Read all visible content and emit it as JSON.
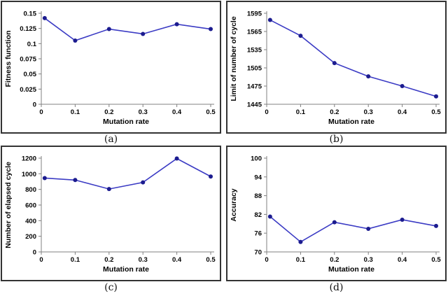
{
  "style": {
    "axis_color": "#808080",
    "line_color": "#3b3bc4",
    "marker_color": "#1c1c8f",
    "panel_border_color": "#333333",
    "background": "#ffffff"
  },
  "chart_data": [
    {
      "type": "line",
      "caption": "(a)",
      "xlabel": "Mutation rate",
      "ylabel": "Fitness function",
      "xlim": [
        0,
        0.5
      ],
      "ylim": [
        0,
        0.15
      ],
      "xticks": [
        0,
        0.1,
        0.2,
        0.3,
        0.4,
        0.5
      ],
      "xtick_labels": [
        "0",
        "0.1",
        "0.2",
        "0.3",
        "0.4",
        "0.5"
      ],
      "yticks": [
        0,
        0.025,
        0.05,
        0.075,
        0.1,
        0.125,
        0.15
      ],
      "ytick_labels": [
        "0",
        "0.025",
        "0.05",
        "0.075",
        "0.1",
        "0.125",
        "0.15"
      ],
      "x": [
        0.01,
        0.1,
        0.2,
        0.3,
        0.4,
        0.5
      ],
      "values": [
        0.142,
        0.105,
        0.124,
        0.116,
        0.132,
        0.124
      ],
      "grid": false,
      "legend": false
    },
    {
      "type": "line",
      "caption": "(b)",
      "xlabel": "Mutation rate",
      "ylabel": "Limit of number of cycle",
      "xlim": [
        0,
        0.5
      ],
      "ylim": [
        1445,
        1595
      ],
      "xticks": [
        0,
        0.1,
        0.2,
        0.3,
        0.4,
        0.5
      ],
      "xtick_labels": [
        "0",
        "0.1",
        "0.2",
        "0.3",
        "0.4",
        "0.5"
      ],
      "yticks": [
        1445,
        1475,
        1505,
        1535,
        1565,
        1595
      ],
      "ytick_labels": [
        "1445",
        "1475",
        "1505",
        "1535",
        "1565",
        "1595"
      ],
      "x": [
        0.01,
        0.1,
        0.2,
        0.3,
        0.4,
        0.5
      ],
      "values": [
        1584,
        1558,
        1513,
        1491,
        1475,
        1458
      ],
      "grid": false,
      "legend": false
    },
    {
      "type": "line",
      "caption": "(c)",
      "xlabel": "Mutation rate",
      "ylabel": "Number of elapsed cycle",
      "xlim": [
        0,
        0.5
      ],
      "ylim": [
        0,
        1200
      ],
      "xticks": [
        0,
        0.1,
        0.2,
        0.3,
        0.4,
        0.5
      ],
      "xtick_labels": [
        "0",
        "0.1",
        "0.2",
        "0.3",
        "0.4",
        "0.5"
      ],
      "yticks": [
        0,
        200,
        400,
        600,
        800,
        1000,
        1200
      ],
      "ytick_labels": [
        "0",
        "200",
        "400",
        "600",
        "800",
        "1000",
        "1200"
      ],
      "x": [
        0.01,
        0.1,
        0.2,
        0.3,
        0.4,
        0.5
      ],
      "values": [
        945,
        920,
        805,
        890,
        1195,
        965
      ],
      "grid": false,
      "legend": false
    },
    {
      "type": "line",
      "caption": "(d)",
      "xlabel": "Mutation rate",
      "ylabel": "Accuracy",
      "xlim": [
        0,
        0.5
      ],
      "ylim": [
        70,
        100
      ],
      "xticks": [
        0,
        0.1,
        0.2,
        0.3,
        0.4,
        0.5
      ],
      "xtick_labels": [
        "0",
        "0.1",
        "0.2",
        "0.3",
        "0.4",
        "0.5"
      ],
      "yticks": [
        70,
        76,
        82,
        88,
        94,
        100
      ],
      "ytick_labels": [
        "70",
        "76",
        "82",
        "88",
        "94",
        "100"
      ],
      "x": [
        0.01,
        0.1,
        0.2,
        0.3,
        0.4,
        0.5
      ],
      "values": [
        81.3,
        73.2,
        79.5,
        77.4,
        80.3,
        78.3
      ],
      "grid": false,
      "legend": false
    }
  ]
}
